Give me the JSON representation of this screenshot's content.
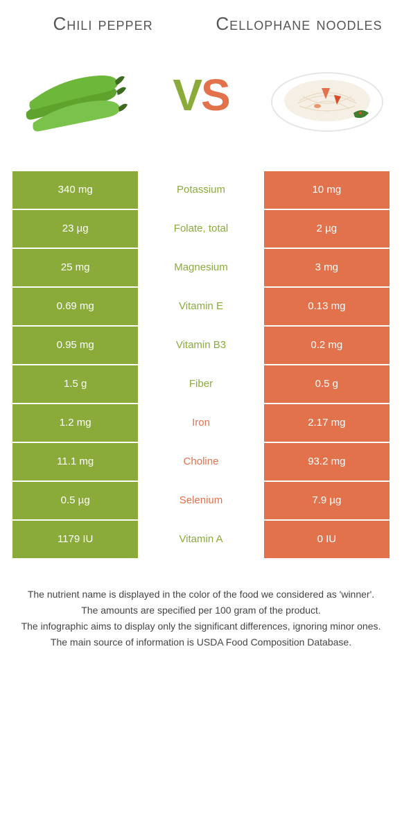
{
  "colors": {
    "left": "#8aab3a",
    "right": "#e2724c",
    "text": "#555"
  },
  "header": {
    "left_title": "Chili pepper",
    "right_title": "Cellophane noodles",
    "vs_v": "V",
    "vs_s": "S"
  },
  "rows": [
    {
      "left": "340 mg",
      "label": "Potassium",
      "right": "10 mg",
      "winner": "left"
    },
    {
      "left": "23 µg",
      "label": "Folate, total",
      "right": "2 µg",
      "winner": "left"
    },
    {
      "left": "25 mg",
      "label": "Magnesium",
      "right": "3 mg",
      "winner": "left"
    },
    {
      "left": "0.69 mg",
      "label": "Vitamin E",
      "right": "0.13 mg",
      "winner": "left"
    },
    {
      "left": "0.95 mg",
      "label": "Vitamin B3",
      "right": "0.2 mg",
      "winner": "left"
    },
    {
      "left": "1.5 g",
      "label": "Fiber",
      "right": "0.5 g",
      "winner": "left"
    },
    {
      "left": "1.2 mg",
      "label": "Iron",
      "right": "2.17 mg",
      "winner": "right"
    },
    {
      "left": "11.1 mg",
      "label": "Choline",
      "right": "93.2 mg",
      "winner": "right"
    },
    {
      "left": "0.5 µg",
      "label": "Selenium",
      "right": "7.9 µg",
      "winner": "right"
    },
    {
      "left": "1179 IU",
      "label": "Vitamin A",
      "right": "0 IU",
      "winner": "left"
    }
  ],
  "notes": [
    "The nutrient name is displayed in the color of the food we considered as 'winner'.",
    "The amounts are specified per 100 gram of the product.",
    "The infographic aims to display only the significant differences, ignoring minor ones.",
    "The main source of information is USDA Food Composition Database."
  ]
}
